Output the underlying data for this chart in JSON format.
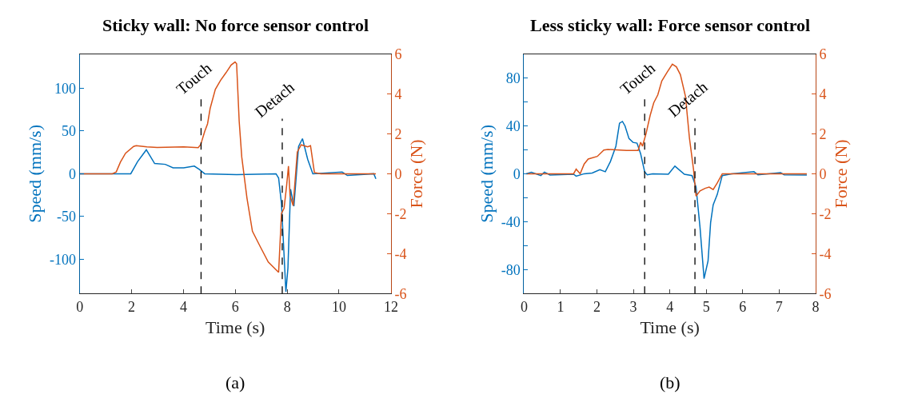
{
  "chart_data": [
    {
      "type": "line",
      "title": "Sticky wall: No force sensor control",
      "xlabel": "Time (s)",
      "ylabel": "Speed (mm/s)",
      "y2label": "Force (N)",
      "xlim": [
        0,
        12
      ],
      "xticks": [
        0,
        2,
        4,
        6,
        8,
        10,
        12
      ],
      "ylim": [
        -140,
        140
      ],
      "yticks": [
        -100,
        -50,
        0,
        50,
        100
      ],
      "y2lim": [
        -6,
        6
      ],
      "y2ticks": [
        -6,
        -4,
        -2,
        0,
        2,
        4,
        6
      ],
      "series": [
        {
          "color": "#0072bd",
          "x": [
            0,
            1.26,
            1.97,
            2.23,
            2.57,
            2.89,
            3.3,
            3.6,
            4.01,
            4.42,
            4.62,
            4.82,
            6.05,
            7.57,
            7.67,
            7.78,
            7.88,
            7.95,
            8.03,
            8.13,
            8.26,
            8.44,
            8.59,
            8.79,
            8.99,
            10.12,
            10.32,
            11.34,
            11.42
          ],
          "values": [
            0,
            0,
            0,
            14,
            28,
            12,
            11,
            7,
            7,
            9,
            5,
            0,
            -1,
            0,
            -5,
            -35,
            -95,
            -138,
            -110,
            -18,
            -38,
            32,
            41,
            17,
            0,
            2,
            -2,
            0,
            -6
          ]
        },
        {
          "color": "#d95319",
          "axis": "y2",
          "x": [
            0,
            1.26,
            1.41,
            1.57,
            1.77,
            2.08,
            2.18,
            2.59,
            2.99,
            4.01,
            4.57,
            4.67,
            4.82,
            4.93,
            5.03,
            5.23,
            5.43,
            5.64,
            5.84,
            5.99,
            6.05,
            6.15,
            6.25,
            6.45,
            6.66,
            6.96,
            7.27,
            7.57,
            7.67,
            7.78,
            7.88,
            7.98,
            8.05,
            8.11,
            8.23,
            8.39,
            8.54,
            8.79,
            8.9,
            9.05,
            9.3,
            11.42
          ],
          "values": [
            0,
            0,
            0.09,
            0.58,
            1.03,
            1.37,
            1.41,
            1.35,
            1.32,
            1.35,
            1.31,
            1.47,
            2.12,
            2.5,
            3.27,
            4.23,
            4.68,
            5.06,
            5.45,
            5.6,
            5.51,
            2.63,
            0.83,
            -1.22,
            -2.88,
            -3.65,
            -4.42,
            -4.81,
            -4.94,
            -1.99,
            -1.73,
            -0.58,
            0.38,
            -1.09,
            -1.6,
            1.09,
            1.45,
            1.35,
            1.41,
            0.06,
            0,
            0
          ]
        }
      ],
      "ref_lines": [
        {
          "axis": "x",
          "value": 4.68,
          "label": "Touch",
          "line_style": "dashed",
          "color": "#000000"
        },
        {
          "axis": "x",
          "value": 7.81,
          "label": "Detach",
          "line_style": "dashed",
          "color": "#000000"
        }
      ],
      "annotations": [
        "(a)"
      ]
    },
    {
      "type": "line",
      "title": "Less sticky wall: Force sensor control",
      "xlabel": "Time (s)",
      "ylabel": "Speed (mm/s)",
      "y2label": "Force (N)",
      "xlim": [
        0,
        8
      ],
      "xticks": [
        0,
        1,
        2,
        3,
        4,
        5,
        6,
        7,
        8
      ],
      "ylim": [
        -100,
        100
      ],
      "yticks": [
        -80,
        {
          "value": -60,
          "label": null
        },
        -40,
        {
          "value": -20,
          "label": null
        },
        0,
        {
          "value": 20,
          "label": null
        },
        40,
        {
          "value": 60,
          "label": null
        },
        80
      ],
      "y2lim": [
        -6,
        6
      ],
      "y2ticks": [
        -6,
        -4,
        -2,
        0,
        2,
        4,
        6
      ],
      "series": [
        {
          "color": "#0072bd",
          "x": [
            0.06,
            0.2,
            0.46,
            0.56,
            0.71,
            1.36,
            1.43,
            1.65,
            1.87,
            2.08,
            2.23,
            2.37,
            2.52,
            2.62,
            2.7,
            2.77,
            2.88,
            2.99,
            3.1,
            3.2,
            3.31,
            3.38,
            3.53,
            3.96,
            4.14,
            4.4,
            4.61,
            4.72,
            4.83,
            4.94,
            5.05,
            5.12,
            5.19,
            5.3,
            5.44,
            5.7,
            6.31,
            6.42,
            7.04,
            7.14,
            7.76
          ],
          "values": [
            0,
            1.3,
            -1.5,
            1.3,
            -1,
            -0.4,
            -2,
            0,
            0.6,
            3.4,
            1.7,
            10.2,
            23,
            42.2,
            43.7,
            40,
            29.4,
            26.2,
            25.6,
            16.6,
            1.7,
            -0.9,
            0,
            -0.4,
            6.4,
            -0.4,
            -1.5,
            -11,
            -45,
            -87.6,
            -72.7,
            -40.9,
            -26,
            -17.5,
            -1.5,
            0,
            1.7,
            -0.9,
            0.9,
            -0.9,
            -1
          ]
        },
        {
          "color": "#d95319",
          "axis": "y2",
          "x": [
            0.06,
            1.36,
            1.43,
            1.54,
            1.65,
            1.76,
            2.01,
            2.19,
            2.3,
            2.81,
            3.13,
            3.2,
            3.25,
            3.35,
            3.46,
            3.56,
            3.67,
            3.78,
            3.93,
            4.07,
            4.18,
            4.29,
            4.43,
            4.54,
            4.65,
            4.72,
            4.83,
            4.97,
            5.08,
            5.19,
            5.3,
            5.44,
            7.76
          ],
          "values": [
            0,
            0,
            0.23,
            0,
            0.49,
            0.74,
            0.87,
            1.19,
            1.22,
            1.17,
            1.17,
            1.58,
            1.38,
            2.03,
            2.92,
            3.56,
            3.95,
            4.65,
            5.1,
            5.49,
            5.36,
            4.97,
            3.88,
            1.77,
            0.23,
            -1.12,
            -0.86,
            -0.73,
            -0.67,
            -0.79,
            -0.47,
            0,
            0
          ]
        }
      ],
      "ref_lines": [
        {
          "axis": "x",
          "value": 3.31,
          "label": "Touch",
          "line_style": "dashed",
          "color": "#000000"
        },
        {
          "axis": "x",
          "value": 4.69,
          "label": "Detach",
          "line_style": "dashed",
          "color": "#000000"
        }
      ],
      "annotations": [
        "(b)"
      ]
    }
  ]
}
